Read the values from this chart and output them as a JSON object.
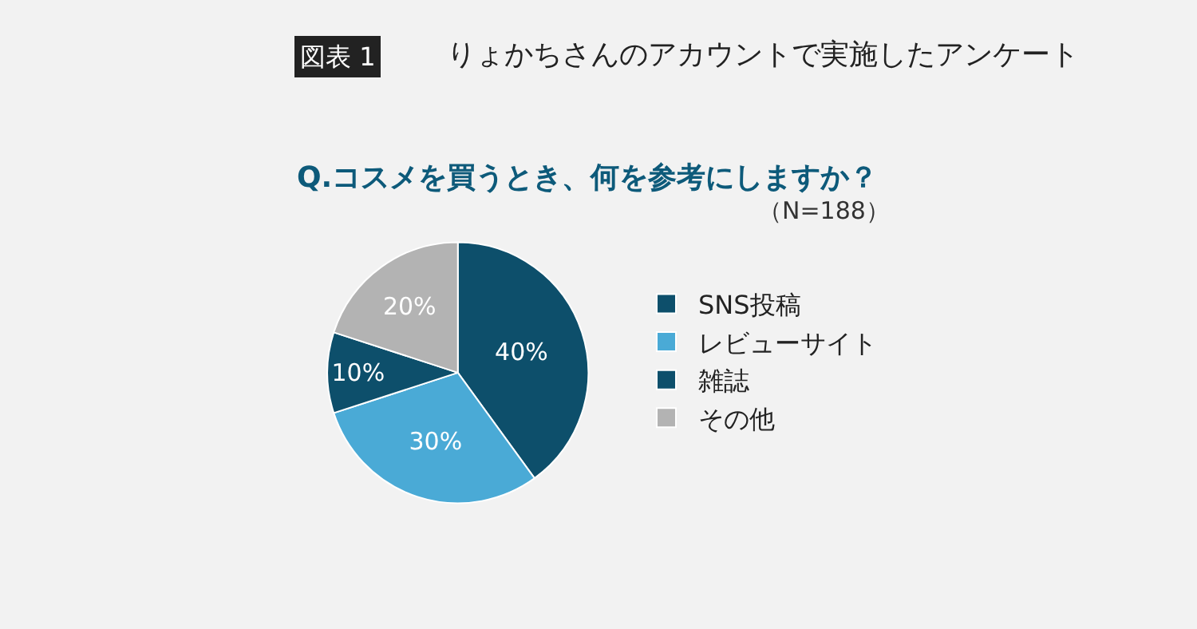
{
  "chart_data": {
    "type": "pie",
    "title": "りょかちさんのアカウントで実施したアンケート",
    "subtitle": "Q.コスメを買うとき、何を参考にしますか？",
    "annotations": [
      "図表 1",
      "（N=188）"
    ],
    "categories": [
      "SNS投稿",
      "レビューサイト",
      "雑誌",
      "その他"
    ],
    "values": [
      40,
      30,
      10,
      20
    ],
    "colors": [
      "#0d4f6b",
      "#4aaad6",
      "#0d4f6b",
      "#b3b3b3"
    ],
    "value_labels": [
      "40%",
      "30%",
      "10%",
      "20%"
    ],
    "legend": "right"
  }
}
